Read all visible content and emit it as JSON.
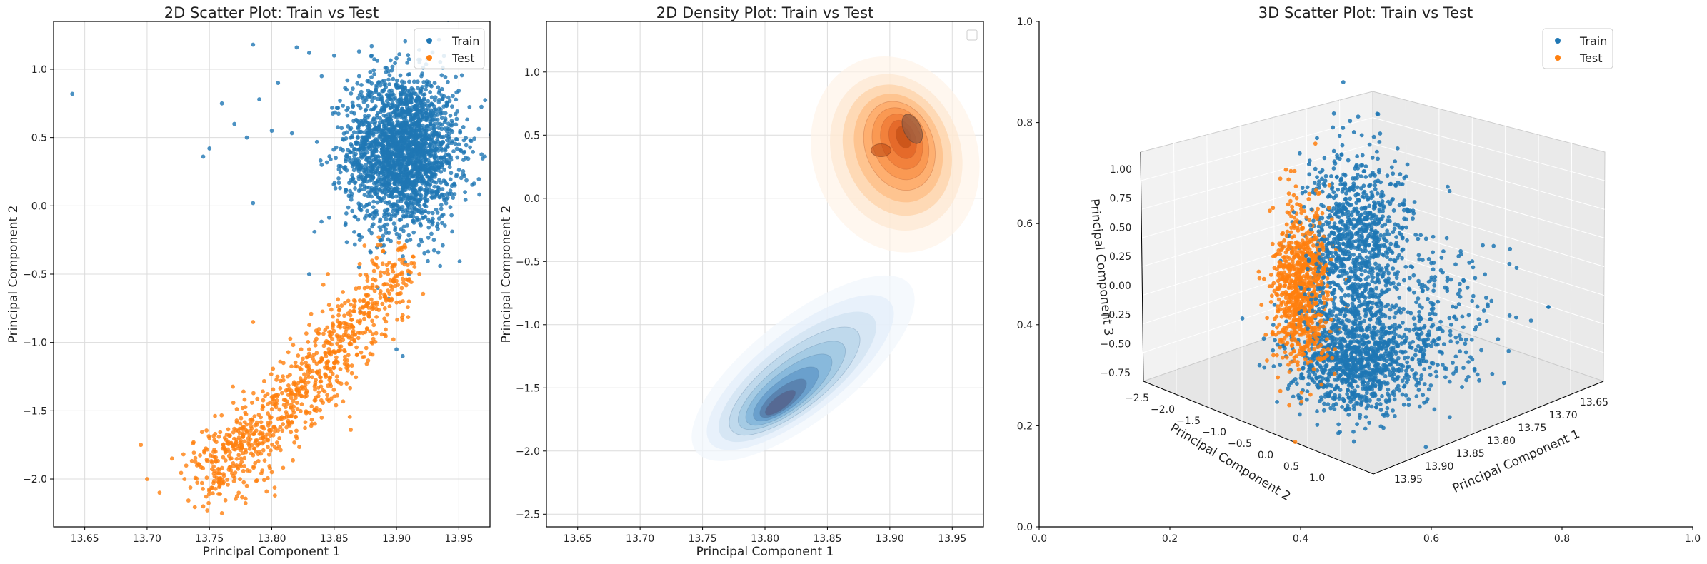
{
  "colors": {
    "train": "#1f77b4",
    "test": "#ff7f0e",
    "grid": "#dcdcdc",
    "axis": "#000000"
  },
  "chart_data": [
    {
      "type": "scatter",
      "title": "2D Scatter Plot: Train vs Test",
      "xlabel": "Principal Component 1",
      "ylabel": "Principal Component 2",
      "xlim": [
        13.625,
        13.975
      ],
      "ylim": [
        -2.35,
        1.35
      ],
      "xticks": [
        "13.65",
        "13.70",
        "13.75",
        "13.80",
        "13.85",
        "13.90",
        "13.95"
      ],
      "xtick_values": [
        13.65,
        13.7,
        13.75,
        13.8,
        13.85,
        13.9,
        13.95
      ],
      "yticks": [
        "1.0",
        "0.5",
        "0.0",
        "−0.5",
        "−1.0",
        "−1.5",
        "−2.0"
      ],
      "ytick_values": [
        1.0,
        0.5,
        0.0,
        -0.5,
        -1.0,
        -1.5,
        -2.0
      ],
      "grid": true,
      "legend": "top-right",
      "series": [
        {
          "name": "Train",
          "approx_points": 3000,
          "points": [
            [
              13.64,
              0.82
            ],
            [
              13.785,
              1.18
            ],
            [
              13.745,
              0.36
            ],
            [
              13.75,
              0.42
            ],
            [
              13.76,
              0.75
            ],
            [
              13.77,
              0.6
            ],
            [
              13.78,
              0.5
            ],
            [
              13.79,
              0.78
            ],
            [
              13.785,
              0.02
            ],
            [
              13.8,
              0.55
            ],
            [
              13.805,
              0.9
            ],
            [
              13.82,
              1.16
            ],
            [
              13.83,
              1.12
            ],
            [
              13.84,
              0.3
            ],
            [
              13.85,
              1.1
            ],
            [
              13.87,
              1.13
            ],
            [
              13.88,
              1.1
            ],
            [
              13.9,
              1.08
            ],
            [
              13.92,
              0.95
            ],
            [
              13.95,
              0.45
            ],
            [
              13.955,
              0.1
            ],
            [
              13.93,
              -0.25
            ],
            [
              13.91,
              -0.5
            ],
            [
              13.885,
              -0.6
            ],
            [
              13.87,
              -0.45
            ],
            [
              13.83,
              -0.5
            ],
            [
              13.905,
              -1.1
            ],
            [
              13.9,
              -1.05
            ],
            [
              13.86,
              0.7
            ],
            [
              13.865,
              0.2
            ],
            [
              13.88,
              -0.2
            ],
            [
              13.84,
              0.95
            ],
            [
              13.89,
              0.55
            ],
            [
              13.9,
              0.3
            ],
            [
              13.91,
              0.7
            ],
            [
              13.92,
              0.2
            ],
            [
              13.935,
              0.6
            ],
            [
              13.94,
              0.05
            ],
            [
              13.87,
              0.95
            ],
            [
              13.895,
              -0.1
            ]
          ]
        },
        {
          "name": "Test",
          "approx_points": 1000,
          "points": [
            [
              13.695,
              -1.75
            ],
            [
              13.7,
              -2.0
            ],
            [
              13.71,
              -2.1
            ],
            [
              13.72,
              -1.85
            ],
            [
              13.745,
              -2.2
            ],
            [
              13.76,
              -2.25
            ],
            [
              13.75,
              -1.7
            ],
            [
              13.78,
              -1.6
            ],
            [
              13.785,
              -0.85
            ],
            [
              13.8,
              -1.4
            ],
            [
              13.82,
              -1.35
            ],
            [
              13.83,
              -1.05
            ],
            [
              13.845,
              -0.5
            ],
            [
              13.86,
              -0.9
            ],
            [
              13.87,
              -0.6
            ],
            [
              13.885,
              -0.45
            ],
            [
              13.9,
              -0.55
            ],
            [
              13.905,
              -0.8
            ],
            [
              13.91,
              -0.7
            ],
            [
              13.88,
              -1.0
            ],
            [
              13.78,
              -2.05
            ],
            [
              13.8,
              -1.95
            ],
            [
              13.82,
              -1.7
            ],
            [
              13.84,
              -1.55
            ],
            [
              13.86,
              -1.3
            ],
            [
              13.74,
              -1.9
            ],
            [
              13.73,
              -2.0
            ],
            [
              13.79,
              -1.8
            ],
            [
              13.81,
              -1.55
            ],
            [
              13.85,
              -1.15
            ]
          ]
        }
      ]
    },
    {
      "type": "heatmap",
      "subtype": "kde-contour",
      "title": "2D Density Plot: Train vs Test",
      "xlabel": "Principal Component 1",
      "ylabel": "Principal Component 2",
      "xlim": [
        13.625,
        13.975
      ],
      "ylim": [
        -2.6,
        1.4
      ],
      "xticks": [
        "13.65",
        "13.70",
        "13.75",
        "13.80",
        "13.85",
        "13.90",
        "13.95"
      ],
      "xtick_values": [
        13.65,
        13.7,
        13.75,
        13.8,
        13.85,
        13.9,
        13.95
      ],
      "yticks": [
        "1.0",
        "0.5",
        "0.0",
        "−0.5",
        "−1.0",
        "−1.5",
        "−2.0",
        "−2.5"
      ],
      "ytick_values": [
        1.0,
        0.5,
        0.0,
        -0.5,
        -1.0,
        -1.5,
        -2.0,
        -2.5
      ],
      "grid": true,
      "legend": "top-right (empty)",
      "series": [
        {
          "name": "",
          "colormap": "Oranges",
          "peak": [
            13.915,
            0.55
          ],
          "secondary_peak": [
            13.89,
            0.4
          ],
          "extent_x": [
            13.74,
            13.96
          ],
          "extent_y": [
            -0.4,
            1.05
          ]
        },
        {
          "name": "",
          "colormap": "Blues",
          "peak": [
            13.815,
            -1.65
          ],
          "extent_x": [
            13.67,
            13.89
          ],
          "extent_y": [
            -2.3,
            -0.6
          ]
        }
      ]
    },
    {
      "type": "scatter",
      "subtype": "3d",
      "title": "3D Scatter Plot: Train vs Test",
      "xlabel": "Principal Component 1",
      "ylabel": "Principal Component 2",
      "zlabel": "Principal Component 3",
      "xticks_3d": [
        "13.65",
        "13.70",
        "13.75",
        "13.80",
        "13.85",
        "13.90",
        "13.95"
      ],
      "yticks_3d": [
        "−2.5",
        "−2.0",
        "−1.5",
        "−1.0",
        "−0.5",
        "0.0",
        "0.5",
        "1.0"
      ],
      "zticks_3d": [
        "1.00",
        "0.75",
        "0.50",
        "0.25",
        "0.00",
        "−0.25",
        "−0.50",
        "−0.75"
      ],
      "outer_xticks": [
        "0.0",
        "0.2",
        "0.4",
        "0.6",
        "0.8",
        "1.0"
      ],
      "outer_yticks": [
        "0.0",
        "0.2",
        "0.4",
        "0.6",
        "0.8",
        "1.0"
      ],
      "grid": true,
      "legend": "top-right",
      "series": [
        {
          "name": "Train",
          "approx_points": 3000
        },
        {
          "name": "Test",
          "approx_points": 1000
        }
      ]
    }
  ]
}
